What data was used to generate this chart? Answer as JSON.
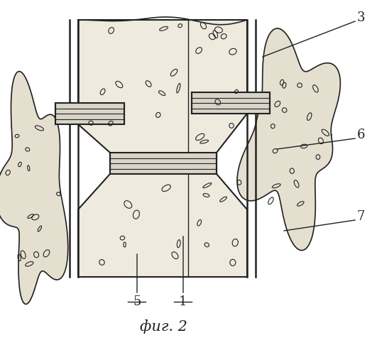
{
  "bg_color": "#ffffff",
  "line_color": "#222222",
  "fill_color": "#eeeade",
  "blob_color": "#e5dfd0",
  "title": "фиг. 2",
  "slab_lw": 1.5,
  "strut_fill": "#d8d4c8"
}
